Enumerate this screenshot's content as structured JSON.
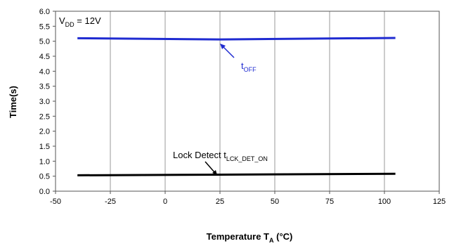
{
  "chart_data": {
    "type": "line",
    "xlabel": "Temperature T",
    "xlabel_sub": "A",
    "xlabel_unit": "(°C)",
    "ylabel": "Time(s)",
    "xlim": [
      -50,
      125
    ],
    "ylim": [
      0,
      6
    ],
    "x_ticks": [
      "-50",
      "-25",
      "0",
      "25",
      "50",
      "75",
      "100",
      "125"
    ],
    "y_ticks": [
      "0.0",
      "0.5",
      "1.0",
      "1.5",
      "2.0",
      "2.5",
      "3.0",
      "3.5",
      "4.0",
      "4.5",
      "5.0",
      "5.5",
      "6.0"
    ],
    "grid": "vertical",
    "legend": "none",
    "condition": {
      "main": "V",
      "sub": "DD",
      "rest": " = 12V"
    },
    "series": [
      {
        "name": "tOFF",
        "color": "#1f2bd1",
        "x": [
          -40,
          25,
          105
        ],
        "y": [
          5.1,
          5.06,
          5.11
        ]
      },
      {
        "name": "Lock Detect tLCK_DET_ON",
        "color": "#000000",
        "x": [
          -40,
          25,
          105
        ],
        "y": [
          0.53,
          0.55,
          0.58
        ]
      }
    ],
    "annotations": [
      {
        "id": "toff",
        "main": "t",
        "sub": "OFF",
        "color": "#1f2bd1"
      },
      {
        "id": "lock",
        "main": "Lock Detect t",
        "sub": "LCK_DET_ON",
        "color": "#000000"
      }
    ]
  }
}
